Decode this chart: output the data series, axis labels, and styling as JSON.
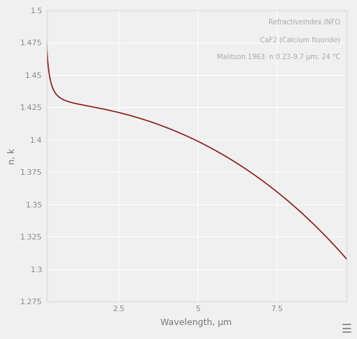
{
  "title_line1": "RefractiveIndex.INFO",
  "title_line2": "CaF2 (Calcium fluoride)",
  "title_line3": "Malitson 1963: n 0.23-9.7 μm; 24 °C",
  "xlabel": "Wavelength, μm",
  "ylabel": "n, k",
  "xlim": [
    0.23,
    9.7
  ],
  "ylim": [
    1.275,
    1.5
  ],
  "xticks": [
    2.5,
    5.0,
    7.5
  ],
  "yticks": [
    1.275,
    1.3,
    1.325,
    1.35,
    1.375,
    1.4,
    1.425,
    1.45,
    1.475,
    1.5
  ],
  "line_color": "#8b1a1a",
  "background_color": "#f0f0f0",
  "grid_color": "#ffffff",
  "annotation_color": "#aaaaaa",
  "spine_color": "#cccccc",
  "tick_color": "#888888",
  "label_color": "#777777",
  "figsize": [
    5.12,
    4.87
  ],
  "dpi": 100
}
